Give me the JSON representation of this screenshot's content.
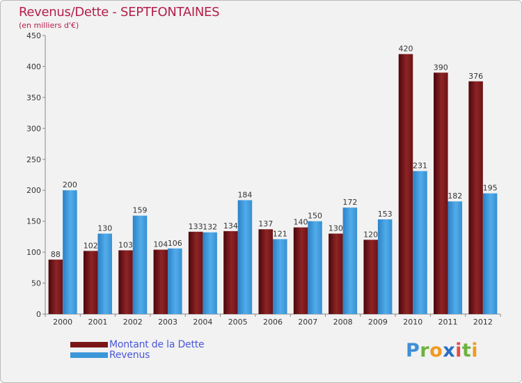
{
  "header": {
    "title": "Revenus/Dette - SEPTFONTAINES",
    "subtitle": "(en milliers d'€)"
  },
  "legend": {
    "items": [
      {
        "label": "Montant de la Dette",
        "color": "#7a1518"
      },
      {
        "label": "Revenus",
        "color": "#3a97d9"
      }
    ]
  },
  "logo": {
    "text": "Proxiti"
  },
  "chart_data": {
    "type": "bar",
    "title": "Revenus/Dette - SEPTFONTAINES",
    "subtitle": "(en milliers d'€)",
    "xlabel": "",
    "ylabel": "",
    "categories": [
      "2000",
      "2001",
      "2002",
      "2003",
      "2004",
      "2005",
      "2006",
      "2007",
      "2008",
      "2009",
      "2010",
      "2011",
      "2012"
    ],
    "series": [
      {
        "name": "Montant de la Dette",
        "color": "#7a1518",
        "values": [
          88,
          102,
          103,
          104,
          133,
          134,
          137,
          140,
          130,
          120,
          420,
          390,
          376
        ]
      },
      {
        "name": "Revenus",
        "color": "#3a97d9",
        "values": [
          200,
          130,
          159,
          106,
          132,
          184,
          121,
          150,
          172,
          153,
          231,
          182,
          195
        ]
      }
    ],
    "ylim": [
      0,
      450
    ],
    "yticks": [
      0,
      50,
      100,
      150,
      200,
      250,
      300,
      350,
      400,
      450
    ],
    "grid": false,
    "legend_position": "bottom-left"
  }
}
